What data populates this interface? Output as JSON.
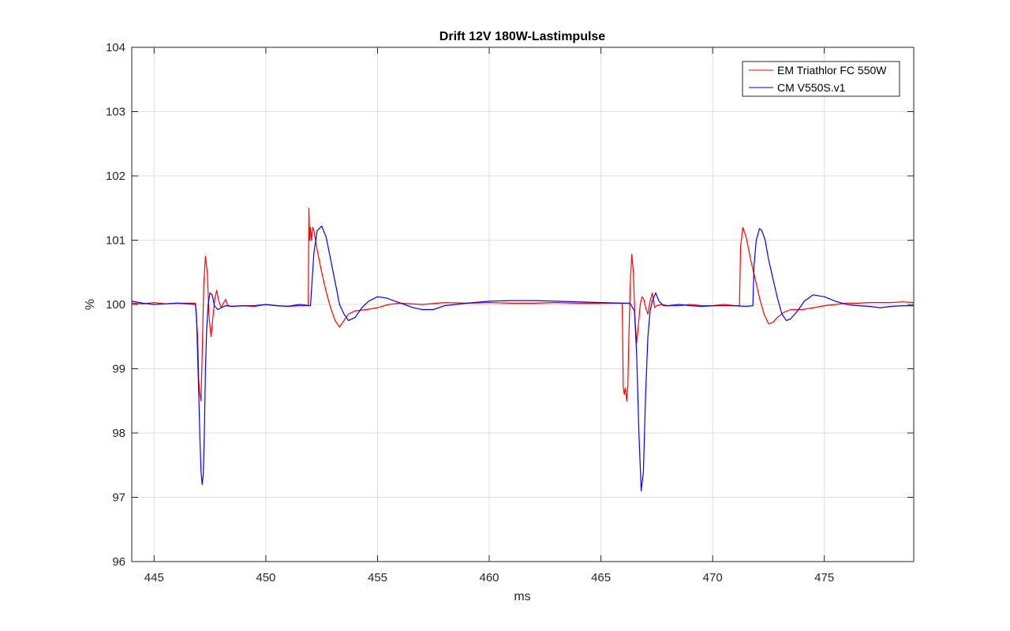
{
  "chart_data": {
    "type": "line",
    "title": "Drift 12V 180W-Lastimpulse",
    "xlabel": "ms",
    "ylabel": "%",
    "xlim": [
      444,
      479
    ],
    "ylim": [
      96,
      104
    ],
    "xticks": [
      445,
      450,
      455,
      460,
      465,
      470,
      475
    ],
    "yticks": [
      96,
      97,
      98,
      99,
      100,
      101,
      102,
      103,
      104
    ],
    "grid": true,
    "legend_position": "top-right",
    "series": [
      {
        "name": "EM Triathlor FC 550W",
        "color": "#ff0000",
        "x": [
          444.0,
          444.5,
          445.0,
          445.5,
          446.0,
          446.5,
          446.85,
          446.95,
          447.0,
          447.05,
          447.1,
          447.15,
          447.22,
          447.3,
          447.38,
          447.46,
          447.55,
          447.63,
          447.72,
          447.8,
          447.9,
          448.0,
          448.1,
          448.2,
          448.3,
          448.5,
          449.0,
          449.5,
          450.0,
          450.5,
          451.0,
          451.5,
          451.9,
          451.93,
          451.96,
          452.0,
          452.05,
          452.1,
          452.15,
          452.3,
          452.5,
          452.7,
          452.9,
          453.1,
          453.3,
          453.5,
          453.7,
          454.0,
          454.5,
          455.0,
          455.5,
          456.0,
          457.0,
          458.0,
          459.0,
          460.0,
          461.0,
          462.0,
          463.0,
          464.0,
          465.0,
          465.5,
          465.95,
          466.0,
          466.05,
          466.1,
          466.15,
          466.2,
          466.25,
          466.32,
          466.38,
          466.45,
          466.52,
          466.6,
          466.68,
          466.76,
          466.84,
          466.92,
          467.0,
          467.1,
          467.2,
          467.3,
          467.4,
          467.5,
          467.7,
          468.0,
          468.5,
          469.0,
          469.5,
          470.0,
          470.5,
          471.0,
          471.2,
          471.25,
          471.35,
          471.5,
          471.7,
          471.9,
          472.1,
          472.3,
          472.5,
          472.7,
          472.9,
          473.2,
          473.5,
          474.0,
          474.5,
          475.0,
          475.5,
          476.0,
          476.5,
          477.0,
          477.5,
          478.0,
          478.5,
          479.0
        ],
        "y": [
          100.02,
          100.01,
          100.03,
          100.01,
          100.02,
          100.02,
          100.02,
          99.5,
          98.8,
          98.6,
          98.5,
          99.2,
          100.3,
          100.75,
          100.5,
          99.8,
          99.5,
          99.8,
          100.1,
          100.22,
          100.05,
          99.95,
          100.02,
          100.08,
          99.98,
          99.97,
          99.98,
          99.97,
          100.0,
          99.98,
          99.97,
          99.98,
          99.98,
          101.5,
          101.0,
          101.2,
          101.0,
          101.2,
          101.15,
          100.85,
          100.5,
          100.2,
          99.95,
          99.75,
          99.65,
          99.75,
          99.85,
          99.9,
          99.92,
          99.95,
          100.0,
          100.02,
          100.0,
          100.03,
          100.02,
          100.03,
          100.02,
          100.02,
          100.03,
          100.02,
          100.02,
          100.02,
          100.02,
          98.7,
          98.6,
          98.7,
          98.5,
          98.7,
          99.5,
          100.4,
          100.78,
          100.5,
          99.8,
          99.4,
          99.7,
          100.0,
          100.12,
          100.08,
          99.95,
          99.85,
          100.05,
          100.18,
          99.95,
          99.98,
          100.0,
          99.98,
          99.98,
          100.0,
          99.98,
          99.98,
          100.0,
          99.98,
          99.98,
          100.9,
          101.2,
          101.05,
          100.7,
          100.4,
          100.1,
          99.85,
          99.7,
          99.72,
          99.8,
          99.88,
          99.92,
          99.92,
          99.95,
          99.98,
          100.0,
          100.02,
          100.02,
          100.03,
          100.03,
          100.03,
          100.04,
          100.03
        ]
      },
      {
        "name": "CM V550S.v1",
        "color": "#0000ff",
        "x": [
          444.0,
          444.5,
          445.0,
          445.5,
          446.0,
          446.5,
          446.85,
          446.9,
          446.95,
          447.0,
          447.05,
          447.1,
          447.15,
          447.2,
          447.25,
          447.3,
          447.35,
          447.42,
          447.5,
          447.6,
          447.7,
          447.85,
          448.0,
          448.2,
          448.5,
          449.0,
          449.5,
          450.0,
          450.5,
          451.0,
          451.5,
          452.0,
          452.15,
          452.3,
          452.5,
          452.7,
          452.9,
          453.1,
          453.3,
          453.5,
          453.7,
          454.0,
          454.3,
          454.6,
          455.0,
          455.4,
          455.8,
          456.2,
          456.6,
          457.0,
          457.5,
          458.0,
          459.0,
          460.0,
          461.0,
          462.0,
          463.0,
          464.0,
          465.0,
          466.0,
          466.3,
          466.5,
          466.6,
          466.7,
          466.8,
          466.9,
          467.0,
          467.1,
          467.2,
          467.3,
          467.45,
          467.6,
          467.8,
          468.0,
          468.5,
          469.0,
          469.5,
          470.0,
          470.5,
          471.0,
          471.5,
          471.8,
          471.85,
          471.95,
          472.1,
          472.2,
          472.35,
          472.5,
          472.7,
          472.9,
          473.1,
          473.3,
          473.5,
          473.8,
          474.1,
          474.5,
          475.0,
          475.5,
          476.0,
          476.5,
          477.0,
          477.5,
          478.0,
          478.5,
          479.0
        ],
        "y": [
          100.05,
          100.02,
          100.0,
          100.01,
          100.02,
          100.01,
          100.0,
          99.8,
          99.2,
          98.6,
          97.9,
          97.4,
          97.2,
          97.35,
          98.0,
          99.0,
          99.6,
          100.0,
          100.18,
          100.15,
          99.98,
          99.92,
          99.95,
          99.98,
          99.97,
          99.98,
          99.98,
          100.0,
          99.98,
          99.97,
          100.0,
          99.98,
          100.8,
          101.15,
          101.22,
          101.05,
          100.7,
          100.35,
          100.0,
          99.85,
          99.75,
          99.8,
          99.95,
          100.05,
          100.12,
          100.1,
          100.05,
          100.0,
          99.95,
          99.92,
          99.92,
          99.98,
          100.02,
          100.05,
          100.06,
          100.06,
          100.05,
          100.04,
          100.03,
          100.02,
          100.02,
          99.9,
          99.2,
          98.0,
          97.1,
          97.4,
          98.6,
          99.5,
          99.9,
          100.05,
          100.18,
          100.05,
          99.98,
          99.98,
          100.0,
          99.98,
          99.97,
          99.98,
          99.98,
          99.98,
          99.97,
          99.98,
          100.6,
          101.0,
          101.18,
          101.15,
          101.0,
          100.7,
          100.4,
          100.1,
          99.85,
          99.75,
          99.78,
          99.9,
          100.05,
          100.15,
          100.12,
          100.05,
          100.0,
          99.98,
          99.97,
          99.95,
          99.97,
          99.98,
          99.98
        ]
      }
    ]
  }
}
